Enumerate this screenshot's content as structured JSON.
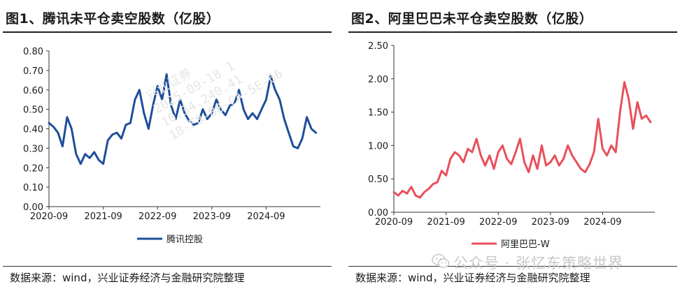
{
  "panels": [
    {
      "title": "图1、腾讯未平仓卖空股数（亿股）",
      "source": "数据来源：wind，兴业证券经济与金融研究院整理"
    },
    {
      "title": "图2、阿里巴巴未平仓卖空股数（亿股）",
      "source": "数据来源：wind，兴业证券经济与金融研究院整理"
    }
  ],
  "watermark": {
    "channel": "公众号 · 张忆东策略世界",
    "icon": "wechat-icon",
    "diagonal_lines": [
      "兴业证券",
      "2025-09-18 1",
      "10.34.240.41",
      "18-F8-88-CA-5E-66"
    ]
  },
  "colors": {
    "tencent": "#1f4e9a",
    "alibaba": "#e8505b",
    "axis": "#333333",
    "text": "#1a1a1a"
  },
  "chart_data": [
    {
      "type": "line",
      "title": "图1、腾讯未平仓卖空股数（亿股）",
      "xlabel": "",
      "ylabel": "",
      "x_ticks": [
        "2020-09",
        "2021-09",
        "2022-09",
        "2023-09",
        "2024-09"
      ],
      "y_ticks": [
        "0.00",
        "0.10",
        "0.20",
        "0.30",
        "0.40",
        "0.50",
        "0.60",
        "0.70",
        "0.80"
      ],
      "ylim": [
        0,
        0.8
      ],
      "xlim": [
        "2020-09",
        "2025-09"
      ],
      "grid": false,
      "legend": "bottom-center",
      "series": [
        {
          "name": "腾讯控股",
          "color": "#1f4e9a",
          "x": [
            "2020-09",
            "2020-10",
            "2020-11",
            "2020-12",
            "2021-01",
            "2021-02",
            "2021-03",
            "2021-04",
            "2021-05",
            "2021-06",
            "2021-07",
            "2021-08",
            "2021-09",
            "2021-10",
            "2021-11",
            "2021-12",
            "2022-01",
            "2022-02",
            "2022-03",
            "2022-04",
            "2022-05",
            "2022-06",
            "2022-07",
            "2022-08",
            "2022-09",
            "2022-10",
            "2022-11",
            "2022-12",
            "2023-01",
            "2023-02",
            "2023-03",
            "2023-04",
            "2023-05",
            "2023-06",
            "2023-07",
            "2023-08",
            "2023-09",
            "2023-10",
            "2023-11",
            "2023-12",
            "2024-01",
            "2024-02",
            "2024-03",
            "2024-04",
            "2024-05",
            "2024-06",
            "2024-07",
            "2024-08",
            "2024-09",
            "2024-10",
            "2024-11",
            "2024-12",
            "2025-01",
            "2025-02",
            "2025-03",
            "2025-04",
            "2025-05",
            "2025-06",
            "2025-07",
            "2025-08"
          ],
          "values": [
            0.43,
            0.41,
            0.38,
            0.31,
            0.46,
            0.4,
            0.27,
            0.22,
            0.27,
            0.25,
            0.28,
            0.24,
            0.22,
            0.34,
            0.37,
            0.38,
            0.35,
            0.42,
            0.43,
            0.55,
            0.6,
            0.48,
            0.4,
            0.52,
            0.62,
            0.55,
            0.68,
            0.52,
            0.45,
            0.55,
            0.48,
            0.44,
            0.42,
            0.43,
            0.5,
            0.45,
            0.48,
            0.55,
            0.5,
            0.47,
            0.52,
            0.53,
            0.6,
            0.5,
            0.45,
            0.48,
            0.45,
            0.5,
            0.55,
            0.67,
            0.6,
            0.55,
            0.45,
            0.38,
            0.31,
            0.3,
            0.35,
            0.46,
            0.4,
            0.38
          ]
        }
      ]
    },
    {
      "type": "line",
      "title": "图2、阿里巴巴未平仓卖空股数（亿股）",
      "xlabel": "",
      "ylabel": "",
      "x_ticks": [
        "2020-09",
        "2021-09",
        "2022-09",
        "2023-09",
        "2024-09"
      ],
      "y_ticks": [
        "0.00",
        "0.50",
        "1.00",
        "1.50",
        "2.00",
        "2.50"
      ],
      "ylim": [
        0,
        2.5
      ],
      "xlim": [
        "2020-09",
        "2025-09"
      ],
      "grid": false,
      "legend": "bottom-center",
      "series": [
        {
          "name": "阿里巴巴-W",
          "color": "#e8505b",
          "x": [
            "2020-09",
            "2020-10",
            "2020-11",
            "2020-12",
            "2021-01",
            "2021-02",
            "2021-03",
            "2021-04",
            "2021-05",
            "2021-06",
            "2021-07",
            "2021-08",
            "2021-09",
            "2021-10",
            "2021-11",
            "2021-12",
            "2022-01",
            "2022-02",
            "2022-03",
            "2022-04",
            "2022-05",
            "2022-06",
            "2022-07",
            "2022-08",
            "2022-09",
            "2022-10",
            "2022-11",
            "2022-12",
            "2023-01",
            "2023-02",
            "2023-03",
            "2023-04",
            "2023-05",
            "2023-06",
            "2023-07",
            "2023-08",
            "2023-09",
            "2023-10",
            "2023-11",
            "2023-12",
            "2024-01",
            "2024-02",
            "2024-03",
            "2024-04",
            "2024-05",
            "2024-06",
            "2024-07",
            "2024-08",
            "2024-09",
            "2024-10",
            "2024-11",
            "2024-12",
            "2025-01",
            "2025-02",
            "2025-03",
            "2025-04",
            "2025-05",
            "2025-06",
            "2025-07",
            "2025-08"
          ],
          "values": [
            0.3,
            0.25,
            0.32,
            0.28,
            0.38,
            0.25,
            0.22,
            0.3,
            0.35,
            0.42,
            0.45,
            0.62,
            0.55,
            0.8,
            0.9,
            0.85,
            0.75,
            0.95,
            0.9,
            1.1,
            0.85,
            0.7,
            0.85,
            0.65,
            0.9,
            1.0,
            0.8,
            0.72,
            0.9,
            1.1,
            0.75,
            0.6,
            0.85,
            0.65,
            1.0,
            0.7,
            0.75,
            0.85,
            0.7,
            0.8,
            1.0,
            0.85,
            0.75,
            0.65,
            0.6,
            0.72,
            0.9,
            1.4,
            0.95,
            0.85,
            1.0,
            0.9,
            1.5,
            1.95,
            1.7,
            1.25,
            1.65,
            1.4,
            1.45,
            1.35
          ]
        }
      ]
    }
  ]
}
